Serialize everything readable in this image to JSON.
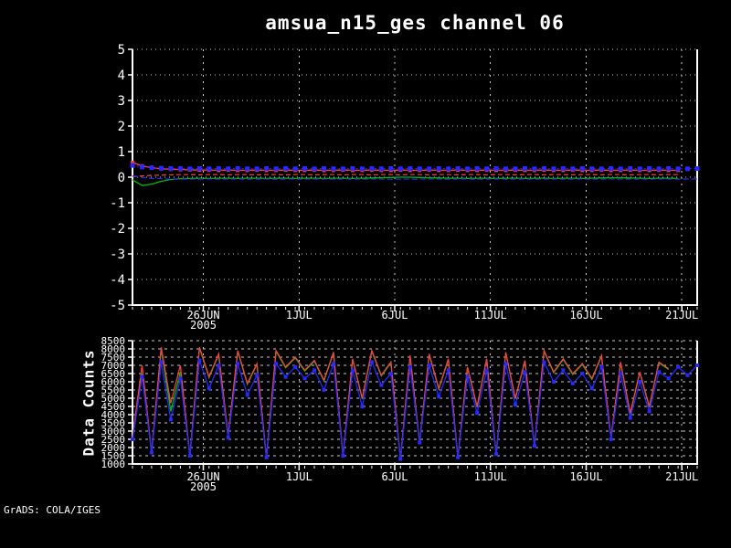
{
  "page": {
    "background": "#000000",
    "watermark": "GrADS: COLA/IGES"
  },
  "title": "amsua_n15_ges channel 06",
  "chart_data": [
    {
      "id": "bias-panel",
      "type": "line",
      "title": "amsua_n15_ges channel 06",
      "xlabel": "",
      "ylabel": "",
      "xlim": [
        0,
        29.5
      ],
      "x_step": 0.5,
      "minor_tick_step": 0.5,
      "ylim": [
        -5,
        5
      ],
      "grid_on": true,
      "grid_color": "#c8c8c8",
      "axis_color": "#ffffff",
      "yticks": [
        5,
        4,
        3,
        2,
        1,
        0,
        -1,
        -2,
        -3,
        -4,
        -5
      ],
      "ytick_labels": [
        "5",
        "4",
        "3",
        "2",
        "1",
        "0",
        "-1",
        "-2",
        "-3",
        "-4",
        "-5"
      ],
      "xticks": [
        {
          "day": 3.7,
          "label": "26JUN",
          "year": "2005"
        },
        {
          "day": 8.7,
          "label": "1JUL"
        },
        {
          "day": 13.7,
          "label": "6JUL"
        },
        {
          "day": 18.7,
          "label": "11JUL"
        },
        {
          "day": 23.7,
          "label": "16JUL"
        },
        {
          "day": 28.7,
          "label": "21JUL"
        }
      ],
      "series": [
        {
          "name": "green-line",
          "color": "#00bb00",
          "width": 1.3,
          "dash": "",
          "marker": "none",
          "marker_size": 0,
          "values": [
            -0.1,
            -0.33,
            -0.27,
            -0.16,
            -0.09,
            -0.06,
            -0.05,
            -0.04,
            -0.05,
            -0.04,
            -0.04,
            -0.05,
            -0.04,
            -0.04,
            -0.05,
            -0.04,
            -0.04,
            -0.05,
            -0.04,
            -0.04,
            -0.05,
            -0.04,
            -0.04,
            -0.05,
            -0.04,
            -0.03,
            -0.02,
            -0.01,
            0.0,
            0.0,
            -0.01,
            -0.02,
            -0.03,
            -0.04,
            -0.04,
            -0.05,
            -0.04,
            -0.04,
            -0.05,
            -0.04,
            -0.04,
            -0.05,
            -0.04,
            -0.04,
            -0.05,
            -0.04,
            -0.04,
            -0.05,
            -0.04,
            -0.03,
            -0.02,
            -0.02,
            -0.03,
            -0.04,
            -0.05,
            -0.04,
            -0.04,
            -0.05,
            null,
            null
          ]
        },
        {
          "name": "red-dashed-line",
          "color": "#f84040",
          "width": 1.2,
          "dash": "5 3",
          "marker": "none",
          "marker_size": 0,
          "values": [
            0.02,
            0.05,
            0.07,
            0.08,
            0.09,
            0.1,
            0.1,
            0.09,
            0.1,
            0.1,
            0.09,
            0.1,
            0.1,
            0.09,
            0.1,
            0.1,
            0.09,
            0.1,
            0.1,
            0.09,
            0.1,
            0.1,
            0.09,
            0.1,
            0.1,
            0.09,
            0.1,
            0.1,
            0.09,
            0.1,
            0.1,
            0.09,
            0.1,
            0.1,
            0.09,
            0.1,
            0.1,
            0.09,
            0.1,
            0.1,
            0.09,
            0.1,
            0.1,
            0.09,
            0.1,
            0.1,
            0.09,
            0.1,
            0.1,
            0.09,
            0.1,
            0.1,
            0.09,
            0.1,
            0.1,
            0.09,
            0.1,
            0.1,
            null,
            null
          ]
        },
        {
          "name": "blue-thin-line",
          "color": "#2828ff",
          "width": 1.2,
          "dash": "6 3",
          "marker": "none",
          "marker_size": 0,
          "values": [
            0.06,
            -0.01,
            -0.05,
            -0.06,
            -0.07,
            -0.07,
            -0.08,
            -0.07,
            -0.07,
            -0.08,
            -0.07,
            -0.07,
            -0.08,
            -0.07,
            -0.07,
            -0.08,
            -0.07,
            -0.07,
            -0.08,
            -0.07,
            -0.07,
            -0.08,
            -0.07,
            -0.07,
            -0.08,
            -0.07,
            -0.07,
            -0.08,
            -0.07,
            -0.07,
            -0.08,
            -0.07,
            -0.07,
            -0.08,
            -0.07,
            -0.07,
            -0.08,
            -0.07,
            -0.07,
            -0.08,
            -0.07,
            -0.07,
            -0.08,
            -0.07,
            -0.07,
            -0.08,
            -0.07,
            -0.07,
            -0.08,
            -0.07,
            -0.07,
            -0.08,
            -0.07,
            -0.07,
            -0.08,
            -0.07,
            -0.07,
            -0.08,
            -0.07,
            -0.07
          ]
        },
        {
          "name": "red-marker-line",
          "color": "#f84040",
          "width": 1.4,
          "dash": "",
          "marker": "square",
          "marker_size": 4,
          "values": [
            0.58,
            0.44,
            0.37,
            0.33,
            0.31,
            0.3,
            0.29,
            0.28,
            0.28,
            0.27,
            0.28,
            0.27,
            0.27,
            0.28,
            0.27,
            0.27,
            0.28,
            0.27,
            0.27,
            0.28,
            0.27,
            0.27,
            0.28,
            0.27,
            0.27,
            0.28,
            0.27,
            0.27,
            0.28,
            0.27,
            0.27,
            0.28,
            0.27,
            0.27,
            0.28,
            0.27,
            0.27,
            0.28,
            0.27,
            0.27,
            0.28,
            0.27,
            0.27,
            0.28,
            0.27,
            0.27,
            0.28,
            0.27,
            0.27,
            0.28,
            0.27,
            0.27,
            0.28,
            0.27,
            0.27,
            0.28,
            0.27,
            0.27,
            null,
            null
          ]
        },
        {
          "name": "blue-marker-line",
          "color": "#2828ff",
          "width": 1,
          "dash": "2 3",
          "marker": "square",
          "marker_size": 5,
          "values": [
            0.46,
            0.4,
            0.37,
            0.35,
            0.34,
            0.34,
            0.33,
            0.34,
            0.33,
            0.34,
            0.33,
            0.34,
            0.33,
            0.33,
            0.34,
            0.33,
            0.34,
            0.33,
            0.34,
            0.33,
            0.34,
            0.33,
            0.33,
            0.34,
            0.33,
            0.34,
            0.33,
            0.34,
            0.33,
            0.34,
            0.33,
            0.33,
            0.34,
            0.33,
            0.34,
            0.33,
            0.34,
            0.33,
            0.34,
            0.33,
            0.33,
            0.34,
            0.33,
            0.34,
            0.33,
            0.34,
            0.33,
            0.34,
            0.33,
            0.33,
            0.34,
            0.33,
            0.34,
            0.33,
            0.34,
            0.33,
            0.34,
            0.33,
            0.33,
            0.34
          ]
        }
      ]
    },
    {
      "id": "counts-panel",
      "type": "line",
      "title": "",
      "xlabel": "",
      "ylabel": "Data Counts",
      "xlim": [
        0,
        29.5
      ],
      "x_step": 0.5,
      "minor_tick_step": 0.5,
      "ylim": [
        1000,
        8500
      ],
      "grid_on": true,
      "grid_color": "#c8c8c8",
      "axis_color": "#ffffff",
      "yticks": [
        8500,
        8000,
        7500,
        7000,
        6500,
        6000,
        5500,
        5000,
        4500,
        4000,
        3500,
        3000,
        2500,
        2000,
        1500,
        1000
      ],
      "ytick_labels": [
        "8500",
        "8000",
        "7500",
        "7000",
        "6500",
        "6000",
        "5500",
        "5000",
        "4500",
        "4000",
        "3500",
        "3000",
        "2500",
        "2000",
        "1500",
        "1000"
      ],
      "xticks": [
        {
          "day": 3.7,
          "label": "26JUN",
          "year": "2005"
        },
        {
          "day": 8.7,
          "label": "1JUL"
        },
        {
          "day": 13.7,
          "label": "6JUL"
        },
        {
          "day": 18.7,
          "label": "11JUL"
        },
        {
          "day": 23.7,
          "label": "16JUL"
        },
        {
          "day": 28.7,
          "label": "21JUL"
        }
      ],
      "series": [
        {
          "name": "green-line",
          "color": "#00bb00",
          "width": 1.3,
          "dash": "",
          "marker": "none",
          "marker_size": 0,
          "values": [
            2450,
            6500,
            1650,
            8000,
            4200,
            6600,
            1450,
            8050,
            6250,
            7650,
            2650,
            7850,
            5850,
            7050,
            1350,
            7850,
            6850,
            7450,
            6650,
            7250,
            6050,
            7750,
            1450,
            7350,
            4950,
            7850,
            6350,
            7150,
            1250,
            7550,
            2250,
            7650,
            5550,
            7350,
            1350,
            6850,
            4450,
            7350,
            1550,
            7750,
            4950,
            7250,
            2050,
            7850,
            6550,
            7350,
            6450,
            7050,
            6150,
            7550,
            2550,
            7150,
            4050,
            6550,
            4450,
            7150,
            6750,
            null,
            null,
            null
          ]
        },
        {
          "name": "red-line",
          "color": "#f84040",
          "width": 1.3,
          "dash": "",
          "marker": "none",
          "marker_size": 0,
          "values": [
            2600,
            7000,
            1700,
            8100,
            4700,
            7000,
            1500,
            8100,
            6300,
            7700,
            2700,
            7900,
            5900,
            7100,
            1400,
            7900,
            6900,
            7500,
            6700,
            7300,
            6100,
            7800,
            1500,
            7400,
            5000,
            7900,
            6400,
            7200,
            1300,
            7600,
            2300,
            7700,
            5600,
            7400,
            1400,
            6900,
            4500,
            7400,
            1600,
            7800,
            5000,
            7300,
            2100,
            7900,
            6600,
            7400,
            6500,
            7100,
            6200,
            7600,
            2600,
            7200,
            4100,
            6600,
            4500,
            7200,
            6800,
            null,
            null,
            null
          ]
        },
        {
          "name": "blue-marker-line",
          "color": "#2828ff",
          "width": 1.3,
          "dash": "",
          "marker": "square",
          "marker_size": 4,
          "values": [
            2500,
            6300,
            1700,
            7200,
            3700,
            6200,
            1500,
            7300,
            5600,
            7000,
            2600,
            7100,
            5200,
            6400,
            1400,
            7100,
            6300,
            6900,
            6200,
            6700,
            5500,
            7100,
            1500,
            6700,
            4500,
            7200,
            5800,
            6500,
            1300,
            6900,
            2300,
            7000,
            5100,
            6700,
            1400,
            6300,
            4100,
            6700,
            1600,
            7100,
            4600,
            6600,
            2100,
            7200,
            6000,
            6700,
            5900,
            6500,
            5600,
            6900,
            2500,
            6500,
            3800,
            6000,
            4200,
            6600,
            6200,
            6900,
            6400,
            7000
          ]
        }
      ]
    }
  ]
}
